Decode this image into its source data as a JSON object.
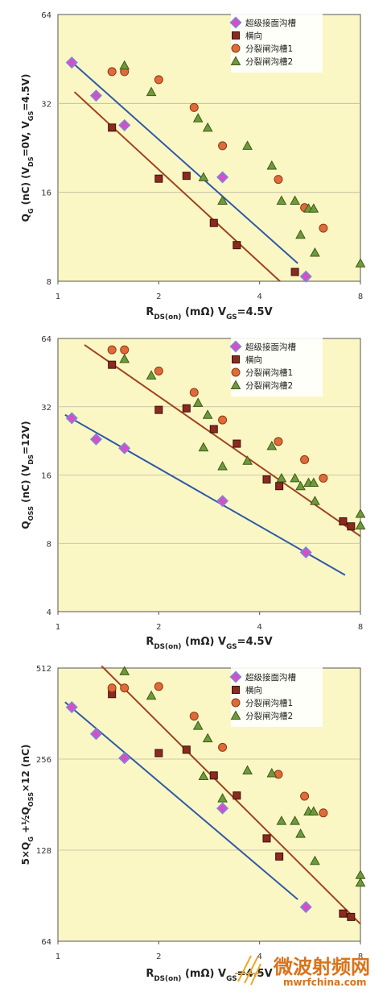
{
  "colors": {
    "plot_bg": "#fbf7c4",
    "grid": "#b9b9a0",
    "frame": "#555555",
    "superjunction": "#d54fc9",
    "lateral": "#8b2a1e",
    "splitgate1": "#e06a3a",
    "splitgate2": "#6f9a3a",
    "fit_blue": "#2f5aa8",
    "fit_brown": "#a0431e"
  },
  "legend_labels": [
    "超级接面沟槽",
    "横向",
    "分裂闸沟槽1",
    "分裂闸沟槽2"
  ],
  "watermark": {
    "cn": "微波射频网",
    "url": "mwrfchina.com"
  },
  "chart_data": [
    {
      "type": "scatter",
      "xscale": "log",
      "yscale": "log",
      "xlim": [
        1,
        8
      ],
      "ylim": [
        8,
        64
      ],
      "xticks": [
        "1",
        "2",
        "4",
        "8"
      ],
      "yticks": [
        "8",
        "16",
        "32",
        "64"
      ],
      "xlabel": {
        "main": "R",
        "sub": "DS(on)",
        "rest": " (mΩ) V",
        "sub2": "GS",
        "end": "=4.5V"
      },
      "ylabel": {
        "main": "Q",
        "sub": "G",
        "rest": " (nC) (V",
        "sub2": "DS",
        "mid": "=0V, V",
        "sub3": "GS",
        "end": "=4.5V)"
      },
      "series": [
        {
          "name": "超级接面沟槽",
          "marker": "diamond",
          "points": [
            [
              1.1,
              44
            ],
            [
              1.3,
              34
            ],
            [
              1.58,
              27
            ],
            [
              3.1,
              18
            ],
            [
              5.5,
              8.3
            ]
          ]
        },
        {
          "name": "横向",
          "marker": "square",
          "points": [
            [
              1.45,
              26.5
            ],
            [
              2.0,
              17.8
            ],
            [
              2.42,
              18.2
            ],
            [
              2.92,
              12.6
            ],
            [
              3.42,
              10.6
            ],
            [
              5.1,
              8.6
            ]
          ]
        },
        {
          "name": "分裂闸沟槽1",
          "marker": "circle",
          "points": [
            [
              1.45,
              41
            ],
            [
              1.58,
              41
            ],
            [
              2.0,
              38.5
            ],
            [
              2.55,
              31
            ],
            [
              3.1,
              23
            ],
            [
              4.55,
              17.7
            ],
            [
              5.45,
              14.2
            ],
            [
              6.2,
              12.1
            ]
          ]
        },
        {
          "name": "分裂闸沟槽2",
          "marker": "triangle",
          "points": [
            [
              1.58,
              43
            ],
            [
              1.9,
              35
            ],
            [
              2.62,
              28.5
            ],
            [
              2.8,
              26.5
            ],
            [
              2.72,
              18
            ],
            [
              3.1,
              15
            ],
            [
              3.68,
              23
            ],
            [
              4.35,
              19.7
            ],
            [
              4.65,
              15
            ],
            [
              5.1,
              15
            ],
            [
              5.3,
              11.5
            ],
            [
              5.6,
              14.1
            ],
            [
              5.8,
              14.1
            ],
            [
              5.85,
              10
            ],
            [
              8.0,
              9.2
            ]
          ]
        }
      ],
      "fits": [
        {
          "color": "fit_blue",
          "from": [
            1.08,
            45
          ],
          "to": [
            5.2,
            9.2
          ]
        },
        {
          "color": "fit_brown",
          "from": [
            1.12,
            35
          ],
          "to": [
            4.6,
            8
          ]
        }
      ]
    },
    {
      "type": "scatter",
      "xscale": "log",
      "yscale": "log",
      "xlim": [
        1,
        8
      ],
      "ylim": [
        4,
        64
      ],
      "xticks": [
        "1",
        "2",
        "4",
        "8"
      ],
      "yticks": [
        "4",
        "8",
        "16",
        "32",
        "64"
      ],
      "xlabel": {
        "main": "R",
        "sub": "DS(on)",
        "rest": " (mΩ) V",
        "sub2": "GS",
        "end": "=4.5V"
      },
      "ylabel": {
        "main": "Q",
        "sub": "OSS",
        "rest": " (nC) (V",
        "sub2": "DS",
        "mid": "",
        "sub3": "",
        "end": "=12V)"
      },
      "series": [
        {
          "name": "超级接面沟槽",
          "marker": "diamond",
          "points": [
            [
              1.1,
              28.5
            ],
            [
              1.3,
              23
            ],
            [
              1.58,
              21
            ],
            [
              3.1,
              12.3
            ],
            [
              5.5,
              7.3
            ]
          ]
        },
        {
          "name": "横向",
          "marker": "square",
          "points": [
            [
              1.45,
              49
            ],
            [
              2.0,
              31
            ],
            [
              2.42,
              31.5
            ],
            [
              2.92,
              25.5
            ],
            [
              3.42,
              22
            ],
            [
              4.2,
              15.3
            ],
            [
              4.58,
              14.3
            ],
            [
              7.1,
              10
            ],
            [
              7.5,
              9.5
            ]
          ]
        },
        {
          "name": "分裂闸沟槽1",
          "marker": "circle",
          "points": [
            [
              1.45,
              57
            ],
            [
              1.58,
              57
            ],
            [
              2.0,
              46
            ],
            [
              2.55,
              37
            ],
            [
              3.1,
              28
            ],
            [
              4.55,
              22.5
            ],
            [
              5.45,
              18.7
            ],
            [
              6.2,
              15.5
            ]
          ]
        },
        {
          "name": "分裂闸沟槽2",
          "marker": "triangle",
          "points": [
            [
              1.58,
              52
            ],
            [
              1.9,
              44
            ],
            [
              2.62,
              33.3
            ],
            [
              2.8,
              29.5
            ],
            [
              2.72,
              21.2
            ],
            [
              3.1,
              17.5
            ],
            [
              3.68,
              18.5
            ],
            [
              4.35,
              21.5
            ],
            [
              4.65,
              15.5
            ],
            [
              5.1,
              15.5
            ],
            [
              5.3,
              14.3
            ],
            [
              5.6,
              14.8
            ],
            [
              5.8,
              14.8
            ],
            [
              5.85,
              12.3
            ],
            [
              8.0,
              10.8
            ],
            [
              8.0,
              9.6
            ]
          ]
        }
      ],
      "fits": [
        {
          "color": "fit_blue",
          "from": [
            1.05,
            29.5
          ],
          "to": [
            7.2,
            5.8
          ]
        },
        {
          "color": "fit_brown",
          "from": [
            1.2,
            60
          ],
          "to": [
            8.0,
            8.6
          ]
        }
      ]
    },
    {
      "type": "scatter",
      "xscale": "log",
      "yscale": "log",
      "xlim": [
        1,
        8
      ],
      "ylim": [
        64,
        512
      ],
      "xticks": [
        "1",
        "2",
        "4",
        "8"
      ],
      "yticks": [
        "64",
        "128",
        "256",
        "512"
      ],
      "xlabel": {
        "main": "R",
        "sub": "DS(on)",
        "rest": " (mΩ) V",
        "sub2": "GS",
        "end": "=4.5V"
      },
      "ylabel": {
        "main": "5×Q",
        "sub": "G",
        "rest": " +½Q",
        "sub2": "OSS",
        "mid": "×12 (nC)",
        "sub3": "",
        "end": ""
      },
      "series": [
        {
          "name": "超级接面沟槽",
          "marker": "diamond",
          "points": [
            [
              1.1,
              380
            ],
            [
              1.3,
              310
            ],
            [
              1.58,
              258
            ],
            [
              3.1,
              176
            ],
            [
              5.5,
              83
            ]
          ]
        },
        {
          "name": "横向",
          "marker": "square",
          "points": [
            [
              1.45,
              420
            ],
            [
              2.0,
              268
            ],
            [
              2.42,
              275
            ],
            [
              2.92,
              226
            ],
            [
              3.42,
              194
            ],
            [
              4.2,
              140
            ],
            [
              4.58,
              122
            ],
            [
              7.1,
              79
            ],
            [
              7.5,
              77
            ]
          ]
        },
        {
          "name": "分裂闸沟槽1",
          "marker": "circle",
          "points": [
            [
              1.45,
              440
            ],
            [
              1.58,
              440
            ],
            [
              2.0,
              445
            ],
            [
              2.55,
              355
            ],
            [
              3.1,
              280
            ],
            [
              4.55,
              228
            ],
            [
              5.45,
              193
            ],
            [
              6.2,
              170
            ]
          ]
        },
        {
          "name": "分裂闸沟槽2",
          "marker": "triangle",
          "points": [
            [
              1.58,
              500
            ],
            [
              1.9,
              415
            ],
            [
              2.62,
              330
            ],
            [
              2.8,
              300
            ],
            [
              2.72,
              225
            ],
            [
              3.1,
              190
            ],
            [
              3.68,
              235
            ],
            [
              4.35,
              230
            ],
            [
              4.65,
              160
            ],
            [
              5.1,
              160
            ],
            [
              5.3,
              145
            ],
            [
              5.6,
              172
            ],
            [
              5.8,
              172
            ],
            [
              5.85,
              118
            ],
            [
              8.0,
              106
            ],
            [
              8.0,
              100
            ]
          ]
        }
      ],
      "fits": [
        {
          "color": "fit_blue",
          "from": [
            1.05,
            395
          ],
          "to": [
            5.2,
            88
          ]
        },
        {
          "color": "fit_brown",
          "from": [
            1.35,
            520
          ],
          "to": [
            8.0,
            73
          ]
        }
      ]
    }
  ]
}
